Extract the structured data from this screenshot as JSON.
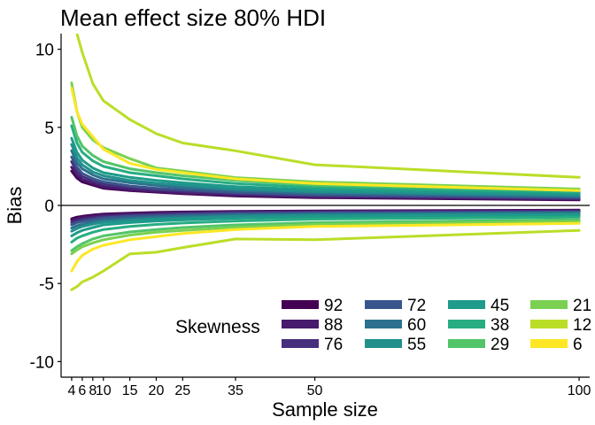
{
  "chart_data": {
    "type": "line",
    "title": "Mean effect size 80% HDI",
    "xlabel": "Sample size",
    "ylabel": "Bias",
    "xlim": [
      2,
      102
    ],
    "ylim": [
      -11,
      11
    ],
    "x_ticks": [
      4,
      6,
      8,
      10,
      15,
      20,
      25,
      35,
      50,
      100
    ],
    "y_ticks": [
      10,
      5,
      0,
      -5,
      -10
    ],
    "y_tick_labels": [
      "10",
      "5",
      "0",
      "-5",
      "-10"
    ],
    "reference_line_y": 0,
    "grid": false,
    "legend": {
      "title": "Skewness",
      "position": "bottom-right",
      "columns": 4
    },
    "x": [
      4,
      5,
      6,
      8,
      10,
      15,
      20,
      25,
      35,
      50,
      100
    ],
    "series": [
      {
        "name": "92",
        "color": "#440154",
        "upper": [
          2.2,
          1.75,
          1.5,
          1.3,
          1.1,
          0.95,
          0.85,
          0.75,
          0.6,
          0.5,
          0.35
        ],
        "lower": [
          -0.85,
          -0.75,
          -0.7,
          -0.62,
          -0.55,
          -0.5,
          -0.45,
          -0.42,
          -0.38,
          -0.35,
          -0.3
        ]
      },
      {
        "name": "88",
        "color": "#481A6C",
        "upper": [
          2.45,
          1.95,
          1.65,
          1.4,
          1.2,
          1.0,
          0.9,
          0.8,
          0.65,
          0.55,
          0.4
        ],
        "lower": [
          -0.95,
          -0.85,
          -0.78,
          -0.7,
          -0.62,
          -0.55,
          -0.5,
          -0.46,
          -0.42,
          -0.38,
          -0.33
        ]
      },
      {
        "name": "76",
        "color": "#472F7D",
        "upper": [
          2.8,
          2.2,
          1.85,
          1.55,
          1.35,
          1.15,
          1.0,
          0.9,
          0.75,
          0.6,
          0.45
        ],
        "lower": [
          -1.1,
          -1.0,
          -0.9,
          -0.8,
          -0.72,
          -0.63,
          -0.58,
          -0.53,
          -0.47,
          -0.43,
          -0.38
        ]
      },
      {
        "name": "72",
        "color": "#39568C",
        "upper": [
          3.1,
          2.45,
          2.05,
          1.72,
          1.5,
          1.25,
          1.1,
          1.0,
          0.82,
          0.68,
          0.5
        ],
        "lower": [
          -1.25,
          -1.1,
          -1.02,
          -0.9,
          -0.8,
          -0.7,
          -0.65,
          -0.6,
          -0.53,
          -0.48,
          -0.42
        ]
      },
      {
        "name": "60",
        "color": "#2D718E",
        "upper": [
          3.5,
          2.75,
          2.35,
          1.95,
          1.7,
          1.45,
          1.28,
          1.15,
          0.95,
          0.78,
          0.58
        ],
        "lower": [
          -1.45,
          -1.3,
          -1.2,
          -1.05,
          -0.95,
          -0.82,
          -0.75,
          -0.7,
          -0.62,
          -0.56,
          -0.48
        ]
      },
      {
        "name": "55",
        "color": "#21908C",
        "upper": [
          3.9,
          3.05,
          2.6,
          2.15,
          1.9,
          1.6,
          1.42,
          1.3,
          1.05,
          0.88,
          0.65
        ],
        "lower": [
          -1.65,
          -1.48,
          -1.35,
          -1.2,
          -1.08,
          -0.95,
          -0.85,
          -0.8,
          -0.7,
          -0.63,
          -0.55
        ]
      },
      {
        "name": "45",
        "color": "#1E9B8A",
        "upper": [
          4.3,
          3.4,
          2.9,
          2.4,
          2.1,
          1.8,
          1.6,
          1.45,
          1.2,
          1.0,
          0.75
        ],
        "lower": [
          -1.95,
          -1.75,
          -1.6,
          -1.42,
          -1.25,
          -1.1,
          -1.0,
          -0.93,
          -0.82,
          -0.73,
          -0.63
        ]
      },
      {
        "name": "38",
        "color": "#27AD81",
        "upper": [
          5.1,
          4.0,
          3.4,
          2.85,
          2.5,
          2.1,
          1.9,
          1.7,
          1.4,
          1.15,
          0.85
        ],
        "lower": [
          -2.35,
          -2.1,
          -1.95,
          -1.72,
          -1.55,
          -1.35,
          -1.22,
          -1.13,
          -1.0,
          -0.88,
          -0.75
        ]
      },
      {
        "name": "29",
        "color": "#52C569",
        "upper": [
          5.65,
          4.45,
          3.8,
          3.2,
          2.8,
          2.35,
          2.1,
          1.9,
          1.6,
          1.3,
          0.95
        ],
        "lower": [
          -2.9,
          -2.65,
          -2.45,
          -2.15,
          -1.95,
          -1.7,
          -1.55,
          -1.42,
          -1.25,
          -1.1,
          -0.92
        ]
      },
      {
        "name": "21",
        "color": "#7AD151",
        "upper": [
          7.85,
          6.0,
          5.0,
          4.2,
          3.7,
          3.0,
          2.4,
          2.2,
          1.78,
          1.5,
          1.05
        ],
        "lower": [
          -3.1,
          -2.85,
          -2.65,
          -2.4,
          -2.2,
          -1.9,
          -1.72,
          -1.6,
          -1.4,
          -1.22,
          -1.02
        ]
      },
      {
        "name": "12",
        "color": "#BADE28",
        "upper": [
          13.5,
          11.0,
          9.8,
          7.8,
          6.7,
          5.5,
          4.6,
          4.0,
          3.5,
          2.6,
          1.8
        ],
        "lower": [
          -5.4,
          -5.2,
          -4.9,
          -4.6,
          -4.2,
          -3.1,
          -3.0,
          -2.7,
          -2.15,
          -2.2,
          -1.6
        ]
      },
      {
        "name": "6",
        "color": "#FDE725",
        "upper": [
          7.5,
          6.0,
          5.2,
          4.4,
          3.6,
          2.7,
          2.3,
          2.1,
          1.7,
          1.4,
          0.95
        ],
        "lower": [
          -4.2,
          -3.6,
          -3.2,
          -2.8,
          -2.55,
          -2.2,
          -2.0,
          -1.8,
          -1.55,
          -1.35,
          -1.15
        ]
      }
    ]
  }
}
